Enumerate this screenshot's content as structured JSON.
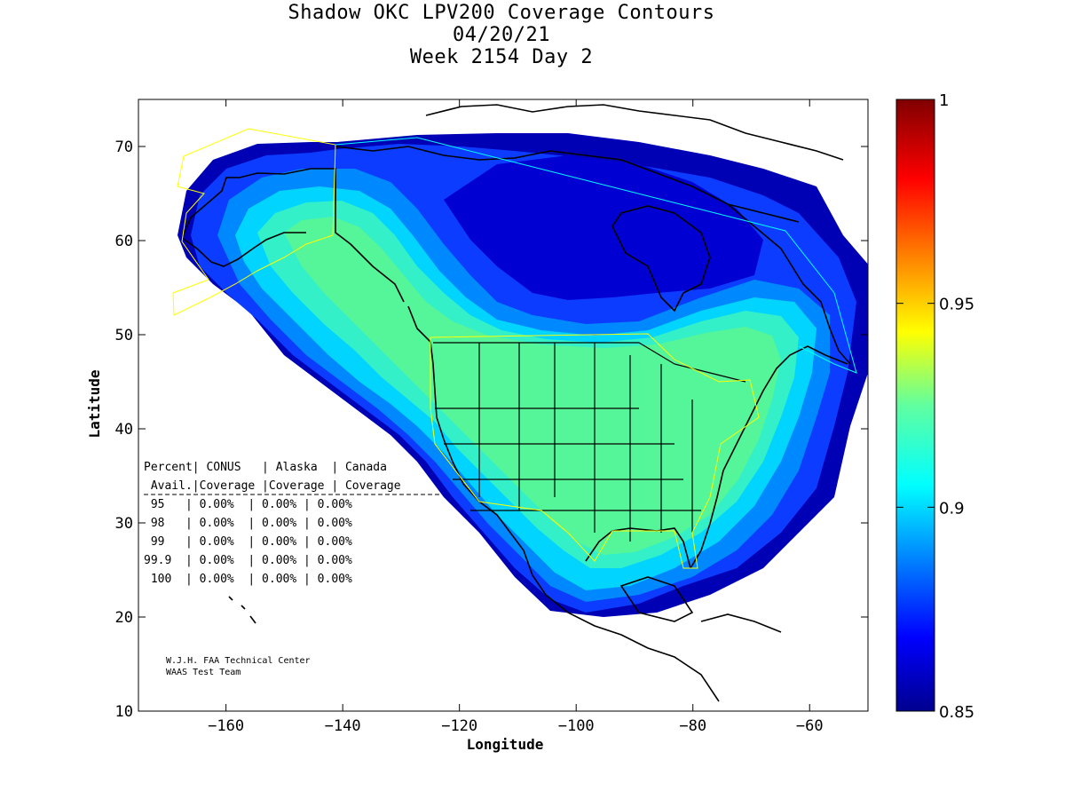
{
  "title": {
    "line1": "Shadow OKC LPV200 Coverage Contours",
    "line2": "04/20/21",
    "line3": "Week 2154 Day 2"
  },
  "axes": {
    "xlabel": "Longitude",
    "ylabel": "Latitude",
    "xlim": [
      -175,
      -50
    ],
    "ylim": [
      10,
      75
    ],
    "xticks": [
      -160,
      -140,
      -120,
      -100,
      -80,
      -60
    ],
    "yticks": [
      10,
      20,
      30,
      40,
      50,
      60,
      70
    ]
  },
  "colorbar": {
    "range": [
      0.85,
      1
    ],
    "ticks": [
      "1",
      "0.95",
      "0.9",
      "0.85"
    ],
    "colormap": "jet"
  },
  "coverage_table": {
    "header1": "Percent| CONUS   | Alaska  | Canada",
    "header2": " Avail.|Coverage |Coverage | Coverage",
    "rows": [
      " 95   | 0.00%  | 0.00% | 0.00%",
      " 98   | 0.00%  | 0.00% | 0.00%",
      " 99   | 0.00%  | 0.00% | 0.00%",
      "99.9  | 0.00%  | 0.00% | 0.00%",
      " 100  | 0.00%  | 0.00% | 0.00%"
    ]
  },
  "credit": {
    "line1": "W.J.H. FAA Technical Center",
    "line2": "WAAS Test Team"
  },
  "colors": {
    "cover_outer": "#0000b4",
    "cover_blue": "#0c3cff",
    "cover_mid": "#0088ff",
    "cover_cyan": "#00d4ff",
    "cover_teal": "#33f0c8",
    "cover_green": "#55f59a",
    "boundary_yellow": "#ffff00",
    "boundary_cyan": "#00ffff"
  }
}
